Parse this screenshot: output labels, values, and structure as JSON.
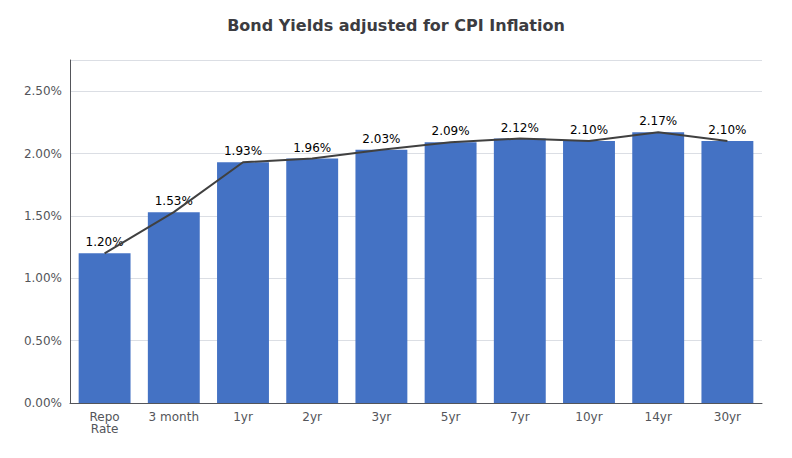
{
  "chart_data": {
    "type": "bar",
    "title": "Bond Yields adjusted for CPI Inflation",
    "categories": [
      "Repo\nRate",
      "3 month",
      "1yr",
      "2yr",
      "3yr",
      "5yr",
      "7yr",
      "10yr",
      "14yr",
      "30yr"
    ],
    "series": [
      {
        "type": "bar",
        "color": "#4472C4",
        "values": [
          1.2,
          1.53,
          1.93,
          1.96,
          2.03,
          2.09,
          2.12,
          2.1,
          2.17,
          2.1
        ],
        "value_labels": [
          "1.20%",
          "1.53%",
          "1.93%",
          "1.96%",
          "2.03%",
          "2.09%",
          "2.12%",
          "2.10%",
          "2.17%",
          "2.10%"
        ]
      },
      {
        "type": "line",
        "color": "#404040",
        "values": [
          1.2,
          1.53,
          1.93,
          1.96,
          2.03,
          2.09,
          2.12,
          2.1,
          2.17,
          2.1
        ]
      }
    ],
    "data_labels": true,
    "ylim": [
      0.0,
      2.75
    ],
    "yticks": [
      {
        "value": 0.0,
        "label": "0.00%"
      },
      {
        "value": 0.5,
        "label": "0.50%"
      },
      {
        "value": 1.0,
        "label": "1.00%"
      },
      {
        "value": 1.5,
        "label": "1.50%"
      },
      {
        "value": 2.0,
        "label": "2.00%"
      },
      {
        "value": 2.5,
        "label": "2.50%"
      }
    ],
    "grid": true
  }
}
